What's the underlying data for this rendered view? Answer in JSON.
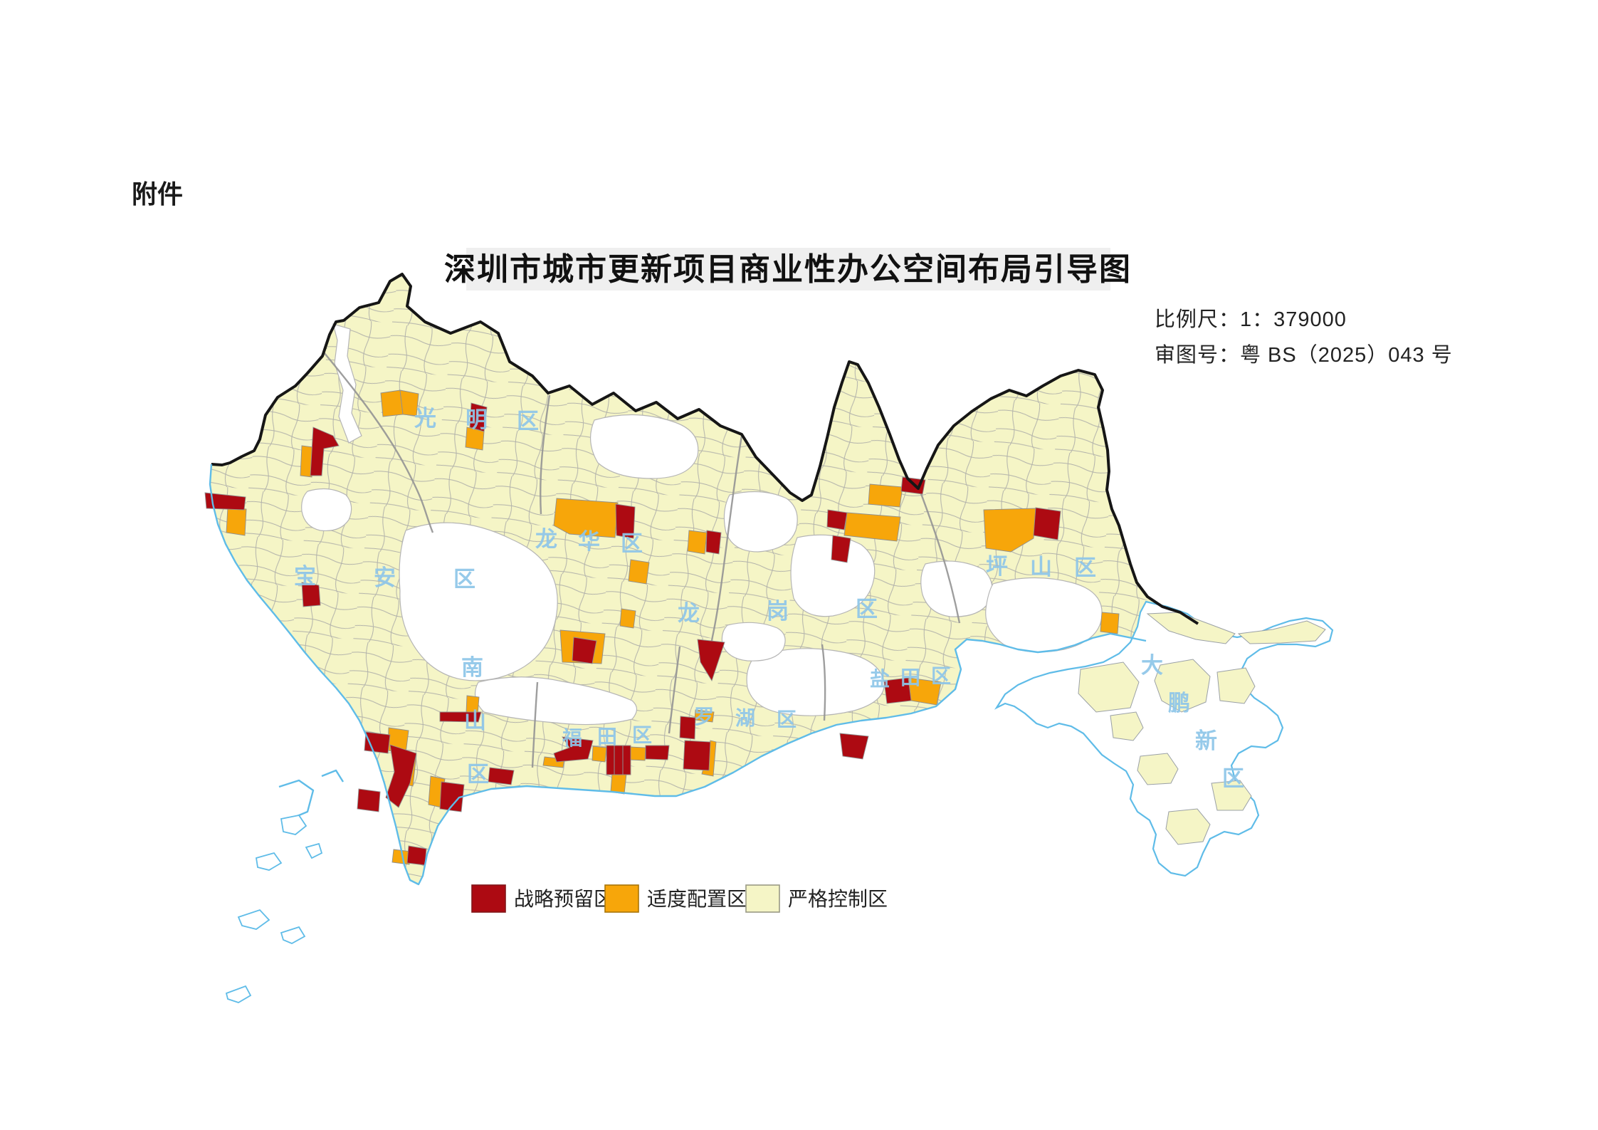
{
  "page": {
    "attachment_label": "附件"
  },
  "title": {
    "text": "深圳市城市更新项目商业性办公空间布局引导图"
  },
  "map_info": {
    "scale_label": "比例尺：1：379000",
    "approval_label": "审图号：粤 BS（2025）043 号"
  },
  "legend": {
    "items": [
      {
        "label": "战略预留区",
        "color": "#AD0A12"
      },
      {
        "label": "适度配置区",
        "color": "#F7A60A"
      },
      {
        "label": "严格控制区",
        "color": "#F5F5C6"
      }
    ]
  },
  "map": {
    "label_color": "#8EC6E9",
    "zone_colors": {
      "strategic_reserve": "#AD0A12",
      "moderate_allocation": "#F7A60A",
      "strict_control": "#F5F5C6"
    },
    "districts": [
      {
        "name": "光明区"
      },
      {
        "name": "宝安区"
      },
      {
        "name": "南山区"
      },
      {
        "name": "龙华区"
      },
      {
        "name": "龙岗区"
      },
      {
        "name": "坪山区"
      },
      {
        "name": "福田区"
      },
      {
        "name": "罗湖区"
      },
      {
        "name": "盐田区"
      },
      {
        "name": "大鹏新区"
      }
    ]
  }
}
